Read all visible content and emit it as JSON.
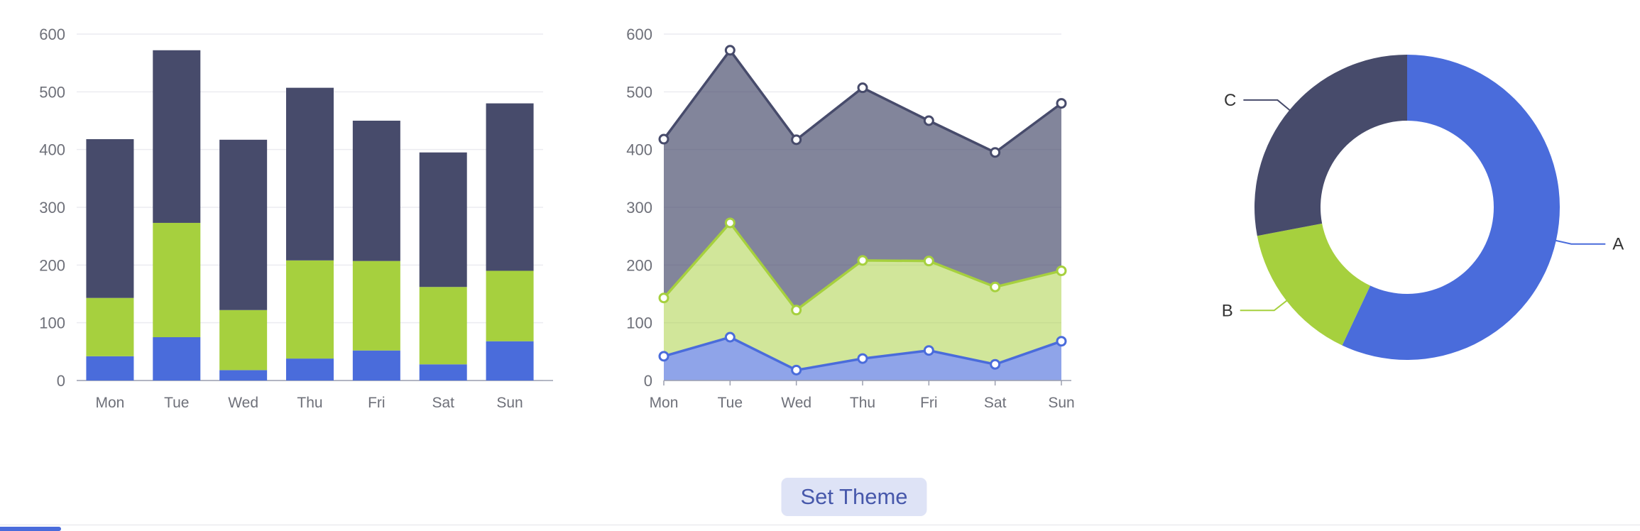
{
  "page": {
    "background": "#ffffff"
  },
  "palette": {
    "blue": "#4a6cdb",
    "green": "#a6d03e",
    "dark": "#474b6b",
    "grid": "#ebebf0",
    "axis_line": "#9ca0b0",
    "axis_label": "#6e7079",
    "pie_label": "#333333"
  },
  "controls": {
    "set_theme_label": "Set Theme",
    "button_bg": "#dee3f6",
    "button_text_color": "#4758ab"
  },
  "footer": {
    "divider_color": "#e4e4e9",
    "accent_bar_color": "#4a6cdb"
  },
  "chart_data": [
    {
      "type": "bar",
      "stacked": true,
      "title": "",
      "xlabel": "",
      "ylabel": "",
      "categories": [
        "Mon",
        "Tue",
        "Wed",
        "Thu",
        "Fri",
        "Sat",
        "Sun"
      ],
      "series": [
        {
          "name": "blue",
          "color": "#4a6cdb",
          "values": [
            42,
            75,
            18,
            38,
            52,
            28,
            68
          ]
        },
        {
          "name": "green",
          "color": "#a6d03e",
          "values": [
            101,
            198,
            104,
            170,
            155,
            134,
            122
          ]
        },
        {
          "name": "dark",
          "color": "#474b6b",
          "values": [
            275,
            299,
            295,
            299,
            243,
            233,
            290
          ]
        }
      ],
      "totals": [
        418,
        572,
        417,
        507,
        450,
        395,
        480
      ],
      "ylim": [
        0,
        600
      ],
      "yticks": [
        0,
        100,
        200,
        300,
        400,
        500,
        600
      ],
      "grid": true,
      "legend": "none"
    },
    {
      "type": "area",
      "stacked": true,
      "markers": true,
      "title": "",
      "xlabel": "",
      "ylabel": "",
      "categories": [
        "Mon",
        "Tue",
        "Wed",
        "Thu",
        "Fri",
        "Sat",
        "Sun"
      ],
      "series": [
        {
          "name": "blue",
          "color": "#4a6cdb",
          "values": [
            42,
            75,
            18,
            38,
            52,
            28,
            68
          ]
        },
        {
          "name": "green",
          "color": "#a6d03e",
          "values": [
            101,
            198,
            104,
            170,
            155,
            134,
            122
          ]
        },
        {
          "name": "dark",
          "color": "#474b6b",
          "values": [
            275,
            299,
            295,
            299,
            243,
            233,
            290
          ]
        }
      ],
      "cumulative_tops": {
        "blue": [
          42,
          75,
          18,
          38,
          52,
          28,
          68
        ],
        "green": [
          143,
          273,
          122,
          208,
          207,
          162,
          190
        ],
        "dark": [
          418,
          572,
          417,
          507,
          450,
          395,
          480
        ]
      },
      "ylim": [
        0,
        600
      ],
      "yticks": [
        0,
        100,
        200,
        300,
        400,
        500,
        600
      ],
      "grid": true,
      "legend": "none"
    },
    {
      "type": "pie",
      "donut": true,
      "title": "",
      "labels_outside": true,
      "slices": [
        {
          "name": "A",
          "value": 57,
          "color": "#4a6cdb"
        },
        {
          "name": "B",
          "value": 15,
          "color": "#a6d03e"
        },
        {
          "name": "C",
          "value": 28,
          "color": "#474b6b"
        }
      ],
      "legend": "none"
    }
  ]
}
